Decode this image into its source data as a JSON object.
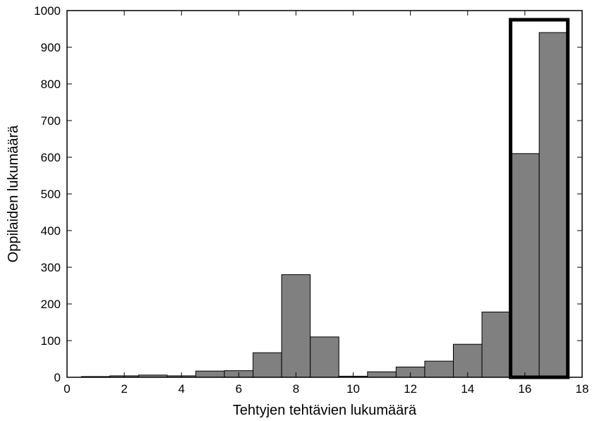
{
  "chart_data": {
    "type": "bar",
    "title": "",
    "xlabel": "Tehtyjen tehtävien lukumäärä",
    "ylabel": "Oppilaiden lukumäärä",
    "x": [
      1,
      2,
      3,
      4,
      5,
      6,
      7,
      8,
      9,
      10,
      11,
      12,
      13,
      14,
      15,
      16,
      17
    ],
    "values": [
      2,
      4,
      6,
      4,
      17,
      18,
      67,
      280,
      110,
      3,
      15,
      28,
      44,
      90,
      178,
      610,
      940
    ],
    "xlim": [
      0,
      18
    ],
    "ylim": [
      0,
      1000
    ],
    "xticks": [
      0,
      2,
      4,
      6,
      8,
      10,
      12,
      14,
      16,
      18
    ],
    "yticks": [
      0,
      100,
      200,
      300,
      400,
      500,
      600,
      700,
      800,
      900,
      1000
    ],
    "bar_color": "#808080",
    "bar_edge_color": "#000000",
    "highlight": {
      "x_range": [
        15.5,
        17.5
      ],
      "y_top": 975,
      "color": "#000000"
    },
    "grid": false
  }
}
